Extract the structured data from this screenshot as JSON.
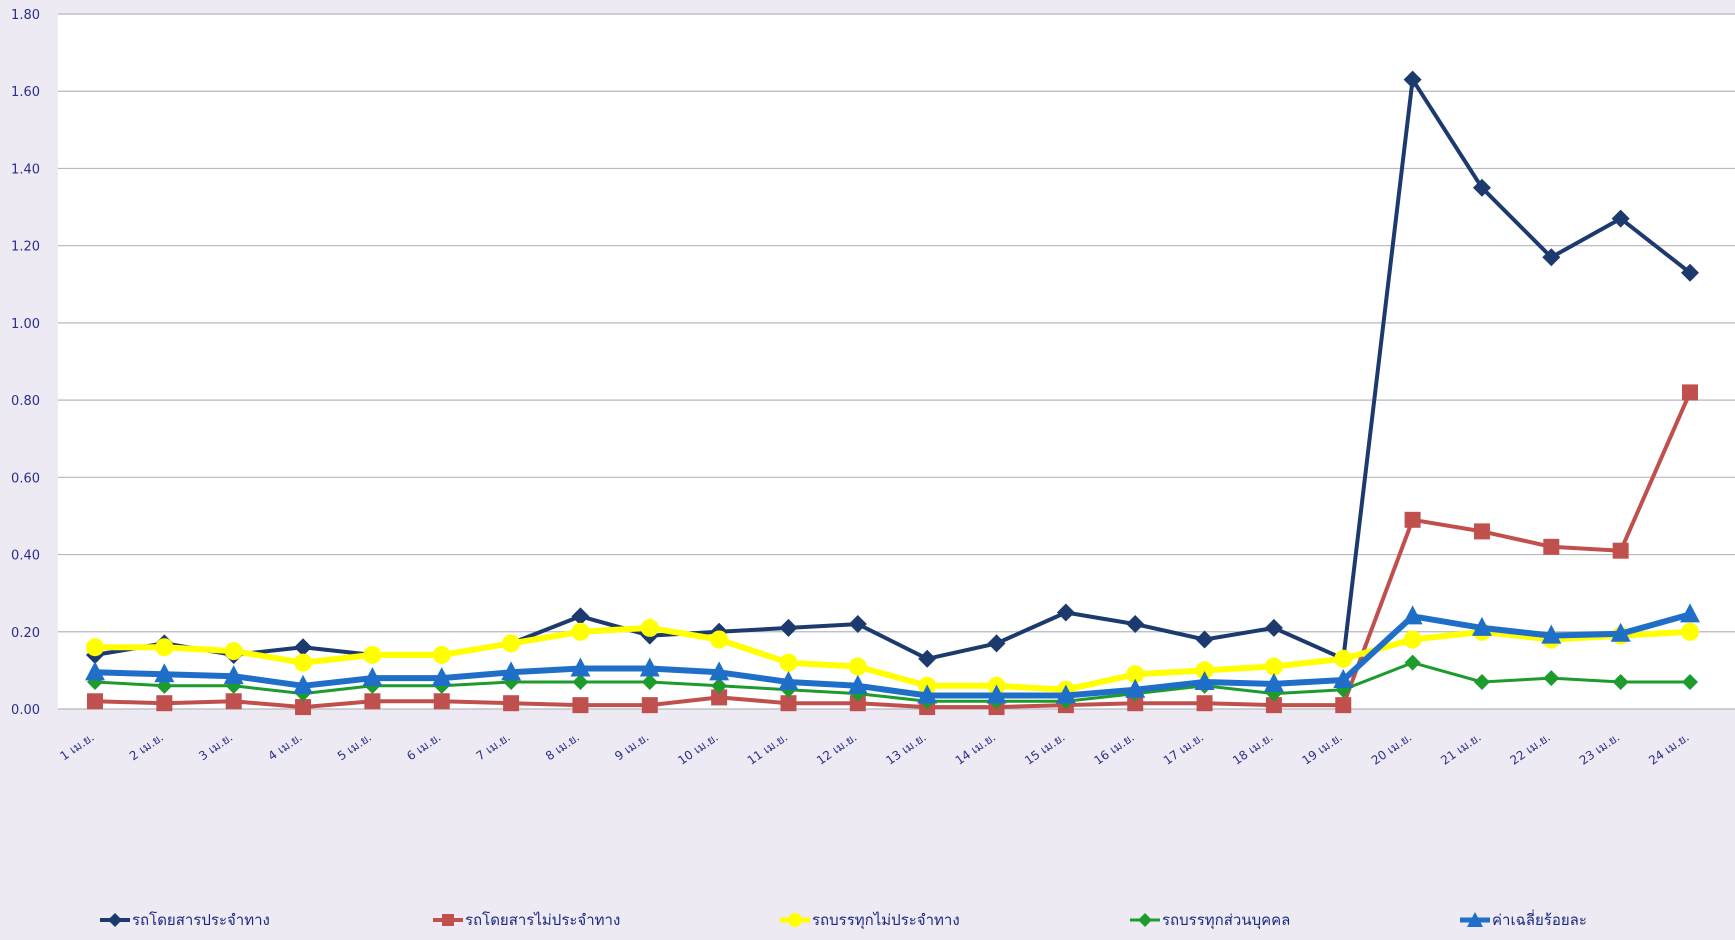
{
  "chart_data": {
    "type": "line",
    "title": "",
    "xlabel": "",
    "ylabel": "",
    "ylim": [
      0,
      1.8
    ],
    "yticks": [
      "0.00",
      "0.20",
      "0.40",
      "0.60",
      "0.80",
      "1.00",
      "1.20",
      "1.40",
      "1.60",
      "1.80"
    ],
    "grid": true,
    "legend_position": "bottom",
    "categories": [
      "1 เม.ย.",
      "2 เม.ย.",
      "3 เม.ย.",
      "4 เม.ย.",
      "5 เม.ย.",
      "6 เม.ย.",
      "7 เม.ย.",
      "8 เม.ย.",
      "9 เม.ย.",
      "10 เม.ย.",
      "11 เม.ย.",
      "12 เม.ย.",
      "13 เม.ย.",
      "14 เม.ย.",
      "15 เม.ย.",
      "16 เม.ย.",
      "17 เม.ย.",
      "18 เม.ย.",
      "19 เม.ย.",
      "20 เม.ย.",
      "21 เม.ย.",
      "22 เม.ย.",
      "23 เม.ย.",
      "24 เม.ย."
    ],
    "series": [
      {
        "name": "รถโดยสารประจำทาง",
        "color": "#1c3a6e",
        "marker": "diamond",
        "values": [
          0.14,
          0.17,
          0.14,
          0.16,
          0.14,
          0.14,
          0.17,
          0.24,
          0.19,
          0.2,
          0.21,
          0.22,
          0.13,
          0.17,
          0.25,
          0.22,
          0.18,
          0.21,
          0.13,
          1.63,
          1.35,
          1.17,
          1.27,
          1.13
        ]
      },
      {
        "name": "รถโดยสารไม่ประจำทาง",
        "color": "#c0504d",
        "marker": "square",
        "values": [
          0.02,
          0.015,
          0.02,
          0.005,
          0.02,
          0.02,
          0.015,
          0.01,
          0.01,
          0.03,
          0.015,
          0.015,
          0.005,
          0.005,
          0.01,
          0.015,
          0.015,
          0.01,
          0.01,
          0.49,
          0.46,
          0.42,
          0.41,
          0.82
        ]
      },
      {
        "name": "รถบรรทุกไม่ประจำทาง",
        "color": "#ffff00",
        "marker": "circle",
        "values": [
          0.16,
          0.16,
          0.15,
          0.12,
          0.14,
          0.14,
          0.17,
          0.2,
          0.21,
          0.18,
          0.12,
          0.11,
          0.06,
          0.06,
          0.05,
          0.09,
          0.1,
          0.11,
          0.13,
          0.18,
          0.2,
          0.18,
          0.19,
          0.2
        ]
      },
      {
        "name": "รถบรรทุกส่วนบุคคล",
        "color": "#1d9b2c",
        "marker": "diamond",
        "values": [
          0.07,
          0.06,
          0.06,
          0.04,
          0.06,
          0.06,
          0.07,
          0.07,
          0.07,
          0.06,
          0.05,
          0.04,
          0.02,
          0.02,
          0.02,
          0.04,
          0.06,
          0.04,
          0.05,
          0.12,
          0.07,
          0.08,
          0.07,
          0.07
        ]
      },
      {
        "name": "ค่าเฉลี่ยร้อยละ",
        "color": "#1f6fc9",
        "marker": "triangle",
        "values": [
          0.095,
          0.09,
          0.085,
          0.06,
          0.08,
          0.08,
          0.095,
          0.105,
          0.105,
          0.095,
          0.07,
          0.06,
          0.035,
          0.035,
          0.035,
          0.05,
          0.07,
          0.065,
          0.075,
          0.24,
          0.21,
          0.19,
          0.195,
          0.245
        ]
      }
    ]
  }
}
